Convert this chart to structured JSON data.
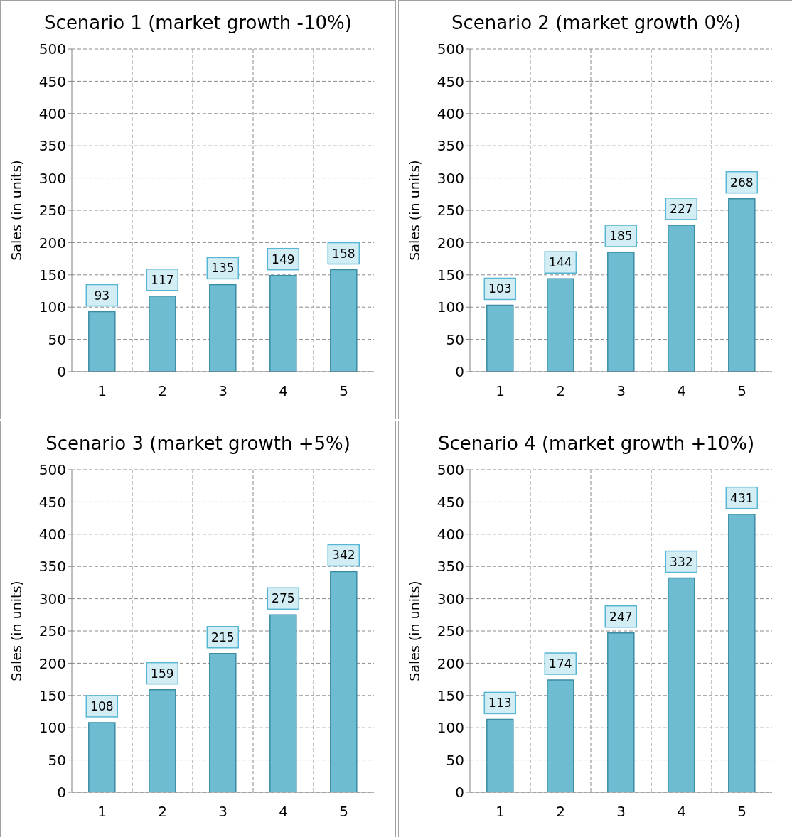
{
  "chart_data": [
    {
      "type": "bar",
      "title": "Scenario 1 (market growth -10%)",
      "ylabel": "Sales (in units)",
      "categories": [
        "1",
        "2",
        "3",
        "4",
        "5"
      ],
      "values": [
        93,
        117,
        135,
        149,
        158
      ],
      "color": "#6dbcd1",
      "ylim": [
        0,
        500
      ],
      "yticks": [
        0,
        50,
        100,
        150,
        200,
        250,
        300,
        350,
        400,
        450,
        500
      ],
      "grid": true,
      "data_labels": true
    },
    {
      "type": "bar",
      "title": "Scenario 2 (market growth 0%)",
      "ylabel": "Sales (in units)",
      "categories": [
        "1",
        "2",
        "3",
        "4",
        "5"
      ],
      "values": [
        103,
        144,
        185,
        227,
        268
      ],
      "color": "#6dbcd1",
      "ylim": [
        0,
        500
      ],
      "yticks": [
        0,
        50,
        100,
        150,
        200,
        250,
        300,
        350,
        400,
        450,
        500
      ],
      "grid": true,
      "data_labels": true
    },
    {
      "type": "bar",
      "title": "Scenario 3 (market growth +5%)",
      "ylabel": "Sales (in units)",
      "categories": [
        "1",
        "2",
        "3",
        "4",
        "5"
      ],
      "values": [
        108,
        159,
        215,
        275,
        342
      ],
      "color": "#6dbcd1",
      "ylim": [
        0,
        500
      ],
      "yticks": [
        0,
        50,
        100,
        150,
        200,
        250,
        300,
        350,
        400,
        450,
        500
      ],
      "grid": true,
      "data_labels": true
    },
    {
      "type": "bar",
      "title": "Scenario 4 (market growth +10%)",
      "ylabel": "Sales (in units)",
      "categories": [
        "1",
        "2",
        "3",
        "4",
        "5"
      ],
      "values": [
        113,
        174,
        247,
        332,
        431
      ],
      "color": "#6dbcd1",
      "ylim": [
        0,
        500
      ],
      "yticks": [
        0,
        50,
        100,
        150,
        200,
        250,
        300,
        350,
        400,
        450,
        500
      ],
      "grid": true,
      "data_labels": true
    }
  ]
}
